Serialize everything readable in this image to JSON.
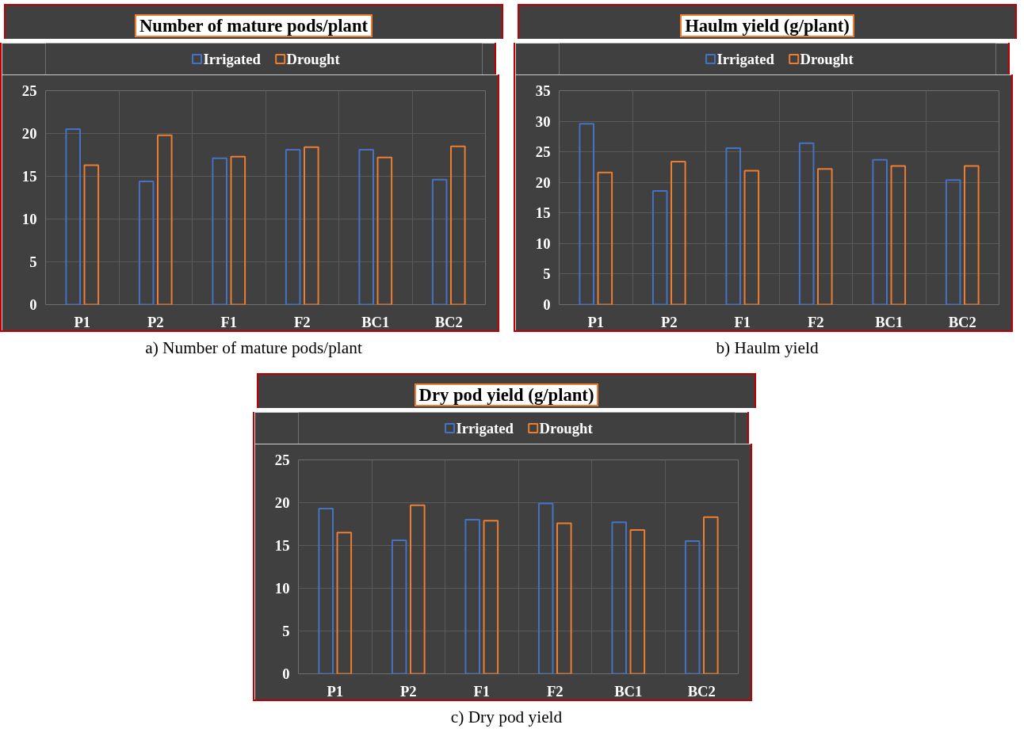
{
  "chart_data": [
    {
      "type": "bar",
      "title": "Number of mature pods/plant",
      "categories": [
        "P1",
        "P2",
        "F1",
        "F2",
        "BC1",
        "BC2"
      ],
      "series": [
        {
          "name": "Irrigated",
          "color": "#4472c4",
          "values": [
            20.5,
            14.4,
            17.1,
            18.1,
            18.1,
            14.6
          ]
        },
        {
          "name": "Drought",
          "color": "#ed7d31",
          "values": [
            16.3,
            19.8,
            17.3,
            18.4,
            17.2,
            18.5
          ]
        }
      ],
      "ylim": [
        0,
        25
      ],
      "yticks": [
        0,
        5,
        10,
        15,
        20,
        25
      ],
      "grid": true,
      "legend": "top",
      "annotations": [
        "a) Number of mature pods/plant"
      ]
    },
    {
      "type": "bar",
      "title": "Haulm yield (g/plant)",
      "categories": [
        "P1",
        "P2",
        "F1",
        "F2",
        "BC1",
        "BC2"
      ],
      "series": [
        {
          "name": "Irrigated",
          "color": "#4472c4",
          "values": [
            29.6,
            18.6,
            25.6,
            26.4,
            23.7,
            20.4
          ]
        },
        {
          "name": "Drought",
          "color": "#ed7d31",
          "values": [
            21.6,
            23.4,
            21.9,
            22.2,
            22.7,
            22.7
          ]
        }
      ],
      "ylim": [
        0,
        35
      ],
      "yticks": [
        0,
        5,
        10,
        15,
        20,
        25,
        30,
        35
      ],
      "grid": true,
      "legend": "top",
      "annotations": [
        "b) Haulm yield"
      ]
    },
    {
      "type": "bar",
      "title": "Dry pod yield (g/plant)",
      "categories": [
        "P1",
        "P2",
        "F1",
        "F2",
        "BC1",
        "BC2"
      ],
      "series": [
        {
          "name": "Irrigated",
          "color": "#4472c4",
          "values": [
            19.3,
            15.6,
            18.0,
            19.9,
            17.7,
            15.5
          ]
        },
        {
          "name": "Drought",
          "color": "#ed7d31",
          "values": [
            16.5,
            19.7,
            17.9,
            17.6,
            16.8,
            18.3
          ]
        }
      ],
      "ylim": [
        0,
        25
      ],
      "yticks": [
        0,
        5,
        10,
        15,
        20,
        25
      ],
      "grid": true,
      "legend": "top",
      "annotations": [
        "c) Dry pod yield"
      ]
    }
  ]
}
